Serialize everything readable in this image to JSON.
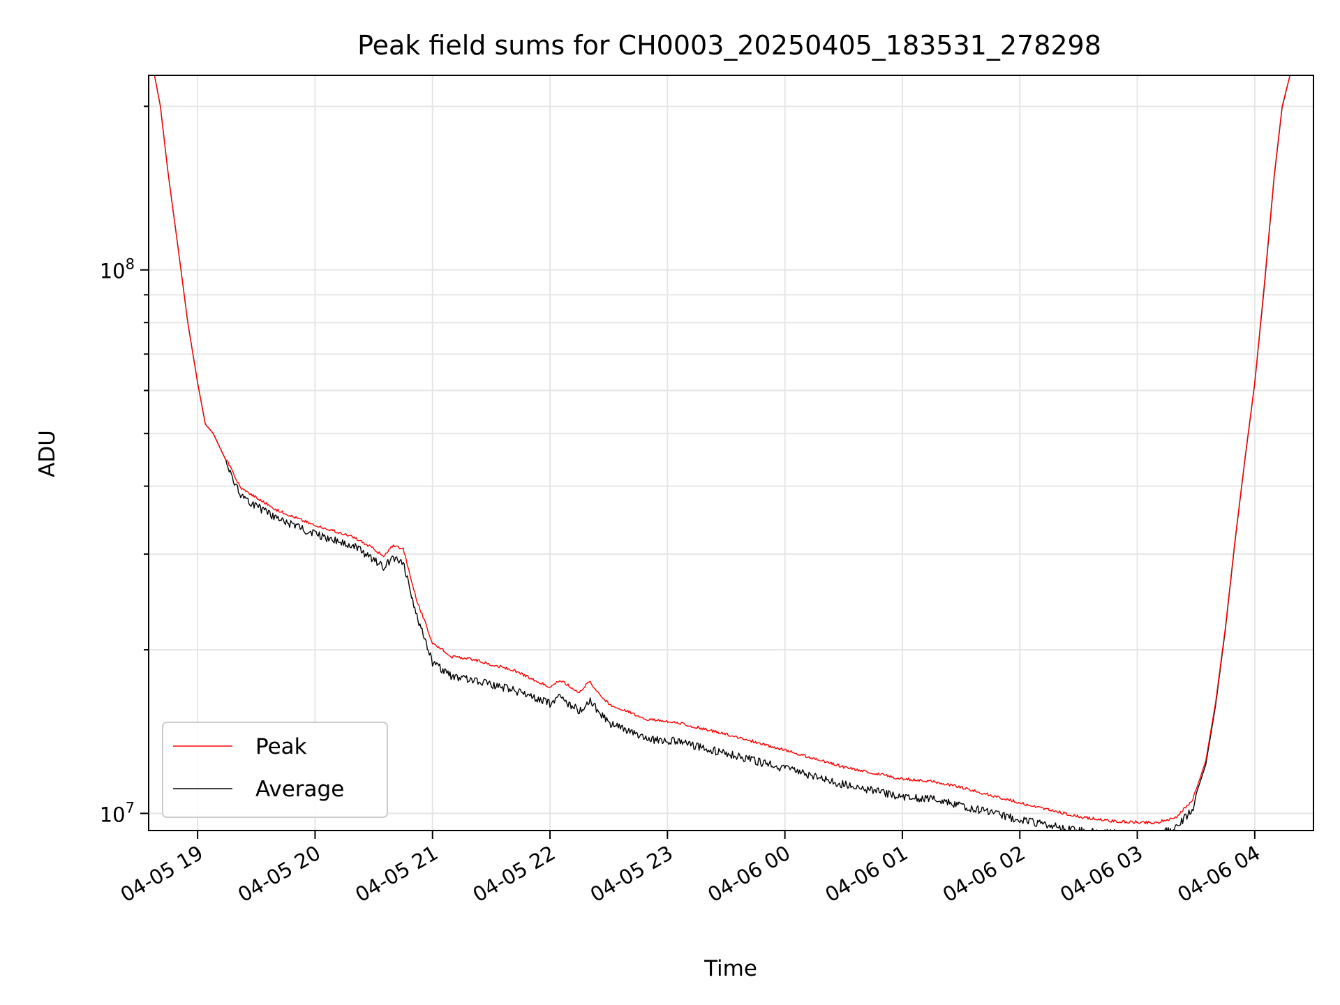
{
  "chart_data": {
    "type": "line",
    "title": "Peak field sums for CH0003_20250405_183531_278298",
    "xlabel": "Time",
    "ylabel": "ADU",
    "yscale": "log",
    "ylim": [
      9300000,
      228000000
    ],
    "xlim": [
      "2025-04-05 18:35",
      "2025-04-06 04:30"
    ],
    "grid": true,
    "legend_position": "lower-left",
    "x_tick_labels": [
      "04-05 19",
      "04-05 20",
      "04-05 21",
      "04-05 22",
      "04-05 23",
      "04-06 00",
      "04-06 01",
      "04-06 02",
      "04-06 03",
      "04-06 04"
    ],
    "x_tick_times": [
      "2025-04-05 19:00",
      "2025-04-05 20:00",
      "2025-04-05 21:00",
      "2025-04-05 22:00",
      "2025-04-05 23:00",
      "2025-04-06 00:00",
      "2025-04-06 01:00",
      "2025-04-06 02:00",
      "2025-04-06 03:00",
      "2025-04-06 04:00"
    ],
    "y_tick_labels": [
      {
        "base": "10",
        "exp": "7",
        "value": 10000000
      },
      {
        "base": "10",
        "exp": "8",
        "value": 100000000
      }
    ],
    "series": [
      {
        "name": "Peak",
        "color": "#ff0000",
        "noise": 0.012,
        "points": [
          [
            "2025-04-05 18:38",
            228000000
          ],
          [
            "2025-04-05 18:41",
            200000000
          ],
          [
            "2025-04-05 18:45",
            150000000
          ],
          [
            "2025-04-05 18:50",
            110000000
          ],
          [
            "2025-04-05 18:55",
            80000000
          ],
          [
            "2025-04-05 19:00",
            62000000
          ],
          [
            "2025-04-05 19:04",
            52000000
          ],
          [
            "2025-04-05 19:08",
            50000000
          ],
          [
            "2025-04-05 19:14",
            45000000
          ],
          [
            "2025-04-05 19:22",
            39500000
          ],
          [
            "2025-04-05 19:40",
            36000000
          ],
          [
            "2025-04-05 20:00",
            33700000
          ],
          [
            "2025-04-05 20:20",
            32000000
          ],
          [
            "2025-04-05 20:30",
            30500000
          ],
          [
            "2025-04-05 20:35",
            29500000
          ],
          [
            "2025-04-05 20:40",
            31000000
          ],
          [
            "2025-04-05 20:45",
            30500000
          ],
          [
            "2025-04-05 20:52",
            24500000
          ],
          [
            "2025-04-05 21:00",
            20500000
          ],
          [
            "2025-04-05 21:10",
            19300000
          ],
          [
            "2025-04-05 21:20",
            19100000
          ],
          [
            "2025-04-05 21:40",
            18300000
          ],
          [
            "2025-04-05 22:00",
            17000000
          ],
          [
            "2025-04-05 22:05",
            17500000
          ],
          [
            "2025-04-05 22:15",
            16600000
          ],
          [
            "2025-04-05 22:20",
            17400000
          ],
          [
            "2025-04-05 22:30",
            15800000
          ],
          [
            "2025-04-05 22:50",
            14800000
          ],
          [
            "2025-04-05 23:05",
            14600000
          ],
          [
            "2025-04-05 23:30",
            13900000
          ],
          [
            "2025-04-06 00:00",
            13000000
          ],
          [
            "2025-04-06 00:30",
            12100000
          ],
          [
            "2025-04-06 01:00",
            11500000
          ],
          [
            "2025-04-06 01:15",
            11400000
          ],
          [
            "2025-04-06 01:30",
            11100000
          ],
          [
            "2025-04-06 02:00",
            10400000
          ],
          [
            "2025-04-06 02:30",
            9800000
          ],
          [
            "2025-04-06 02:50",
            9600000
          ],
          [
            "2025-04-06 03:10",
            9550000
          ],
          [
            "2025-04-06 03:20",
            9800000
          ],
          [
            "2025-04-06 03:28",
            10500000
          ],
          [
            "2025-04-06 03:35",
            12500000
          ],
          [
            "2025-04-06 03:40",
            16000000
          ],
          [
            "2025-04-06 03:45",
            22000000
          ],
          [
            "2025-04-06 03:50",
            32000000
          ],
          [
            "2025-04-06 03:55",
            45000000
          ],
          [
            "2025-04-06 04:00",
            62000000
          ],
          [
            "2025-04-06 04:05",
            95000000
          ],
          [
            "2025-04-06 04:10",
            150000000
          ],
          [
            "2025-04-06 04:14",
            200000000
          ],
          [
            "2025-04-06 04:18",
            228000000
          ]
        ]
      },
      {
        "name": "Average",
        "color": "#000000",
        "noise": 0.035,
        "points": [
          [
            "2025-04-05 18:38",
            228000000
          ],
          [
            "2025-04-05 18:41",
            200000000
          ],
          [
            "2025-04-05 18:45",
            150000000
          ],
          [
            "2025-04-05 18:50",
            110000000
          ],
          [
            "2025-04-05 18:55",
            80000000
          ],
          [
            "2025-04-05 19:00",
            62000000
          ],
          [
            "2025-04-05 19:04",
            52000000
          ],
          [
            "2025-04-05 19:08",
            50000000
          ],
          [
            "2025-04-05 19:14",
            45000000
          ],
          [
            "2025-04-05 19:22",
            39000000
          ],
          [
            "2025-04-05 19:40",
            35500000
          ],
          [
            "2025-04-05 20:00",
            33200000
          ],
          [
            "2025-04-05 20:20",
            31500000
          ],
          [
            "2025-04-05 20:30",
            29800000
          ],
          [
            "2025-04-05 20:35",
            28800000
          ],
          [
            "2025-04-05 20:40",
            30000000
          ],
          [
            "2025-04-05 20:45",
            29500000
          ],
          [
            "2025-04-05 20:52",
            23500000
          ],
          [
            "2025-04-05 21:00",
            19300000
          ],
          [
            "2025-04-05 21:10",
            18100000
          ],
          [
            "2025-04-05 21:20",
            17900000
          ],
          [
            "2025-04-05 21:40",
            17200000
          ],
          [
            "2025-04-05 22:00",
            16200000
          ],
          [
            "2025-04-05 22:05",
            16600000
          ],
          [
            "2025-04-05 22:15",
            15700000
          ],
          [
            "2025-04-05 22:20",
            16400000
          ],
          [
            "2025-04-05 22:30",
            14900000
          ],
          [
            "2025-04-05 22:50",
            13900000
          ],
          [
            "2025-04-05 23:05",
            13800000
          ],
          [
            "2025-04-05 23:30",
            13100000
          ],
          [
            "2025-04-06 00:00",
            12300000
          ],
          [
            "2025-04-06 00:30",
            11500000
          ],
          [
            "2025-04-06 01:00",
            10900000
          ],
          [
            "2025-04-06 01:15",
            10800000
          ],
          [
            "2025-04-06 01:30",
            10500000
          ],
          [
            "2025-04-06 02:00",
            9900000
          ],
          [
            "2025-04-06 02:30",
            9450000
          ],
          [
            "2025-04-06 02:50",
            9350000
          ],
          [
            "2025-04-06 03:10",
            9300000
          ],
          [
            "2025-04-06 03:20",
            9600000
          ],
          [
            "2025-04-06 03:28",
            10300000
          ],
          [
            "2025-04-06 03:35",
            12300000
          ],
          [
            "2025-04-06 03:40",
            15800000
          ],
          [
            "2025-04-06 03:45",
            21800000
          ],
          [
            "2025-04-06 03:50",
            31800000
          ],
          [
            "2025-04-06 03:55",
            44800000
          ],
          [
            "2025-04-06 04:00",
            61800000
          ],
          [
            "2025-04-06 04:05",
            94000000
          ],
          [
            "2025-04-06 04:10",
            149000000
          ],
          [
            "2025-04-06 04:14",
            199000000
          ],
          [
            "2025-04-06 04:18",
            228000000
          ]
        ]
      }
    ]
  }
}
